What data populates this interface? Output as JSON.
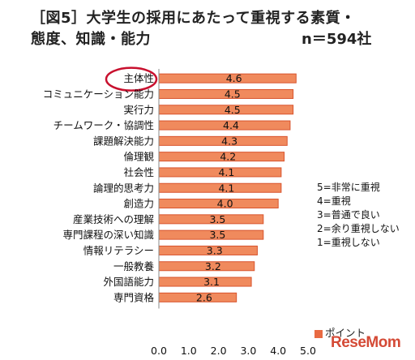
{
  "title": {
    "line1": "［図5］大学生の採用にあたって重視する素質・",
    "line2": "態度、知識・能力",
    "sample": "n＝594社"
  },
  "scale_note": [
    "5=非常に重視",
    "4=重視",
    "3=普通で良い",
    "2=余り重視しない",
    "1=重視しない"
  ],
  "logo": "ReseMom",
  "colors": {
    "bar": "#f08a5d",
    "bar_edge": "#d8542e",
    "highlight_circle": "#c8102e"
  },
  "chart_data": {
    "type": "bar",
    "orientation": "horizontal",
    "categories": [
      "主体性",
      "コミュニケーション能力",
      "実行力",
      "チームワーク・協調性",
      "課題解決能力",
      "倫理観",
      "社会性",
      "論理的思考力",
      "創造力",
      "産業技術への理解",
      "専門課程の深い知識",
      "情報リテラシー",
      "一般教養",
      "外国語能力",
      "専門資格"
    ],
    "series": [
      {
        "name": "ポイント",
        "values": [
          4.6,
          4.5,
          4.5,
          4.4,
          4.3,
          4.2,
          4.1,
          4.1,
          4.0,
          3.5,
          3.5,
          3.3,
          3.2,
          3.1,
          2.6
        ]
      }
    ],
    "xlim": [
      0,
      5
    ],
    "xticks": [
      "0.0",
      "1.0",
      "2.0",
      "3.0",
      "4.0",
      "5.0"
    ],
    "value_labels": [
      "4.6",
      "4.5",
      "4.5",
      "4.4",
      "4.3",
      "4.2",
      "4.1",
      "4.1",
      "4.0",
      "3.5",
      "3.5",
      "3.3",
      "3.2",
      "3.1",
      "2.6"
    ],
    "highlighted_category": "主体性",
    "legend_position": "bottom-right",
    "grid": false
  }
}
